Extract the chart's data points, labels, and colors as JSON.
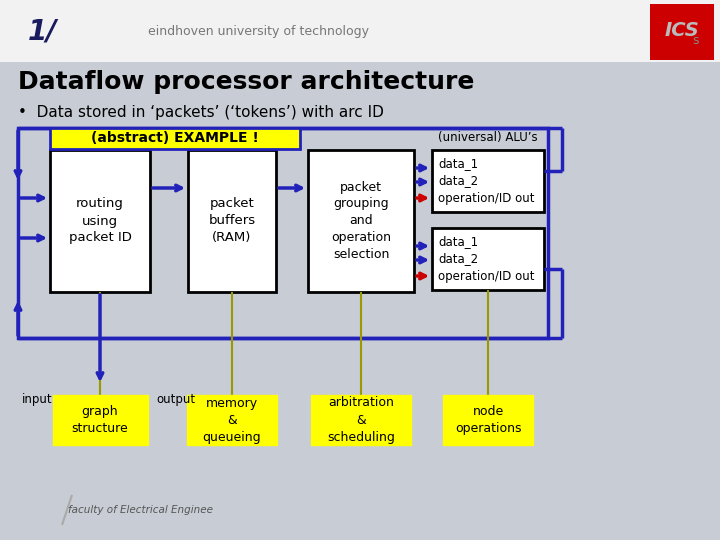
{
  "bg_color": "#c8ccd4",
  "header_bg": "#f2f2f2",
  "yellow": "#ffff00",
  "blue": "#2222bb",
  "red": "#cc0000",
  "black": "#000000",
  "white": "#ffffff",
  "dark_navy": "#1a1a5e",
  "gray_line": "#999900",
  "slide_num": "1/",
  "univ_text": "eindhoven university of technology",
  "title": "Dataflow processor architecture",
  "subtitle": "•  Data stored in ‘packets’ (‘tokens’) with arc ID",
  "label_example": "(abstract) EXAMPLE !",
  "label_universal": "(universal) ALU’s",
  "box_routing": "routing\nusing\npacket ID",
  "box_buffers": "packet\nbuffers\n(RAM)",
  "box_grouping": "packet\ngrouping\nand\noperation\nselection",
  "box_alu1": "data_1\ndata_2\noperation/ID out",
  "box_alu2": "data_1\ndata_2\noperation/ID out",
  "label_input": "input",
  "label_output": "output",
  "label_graph": "graph\nstructure",
  "label_memory": "memory\n&\nqueueing",
  "label_arbitration": "arbitration\n&\nscheduling",
  "label_node": "node\noperations",
  "faculty_text": "faculty of Electrical Enginee"
}
